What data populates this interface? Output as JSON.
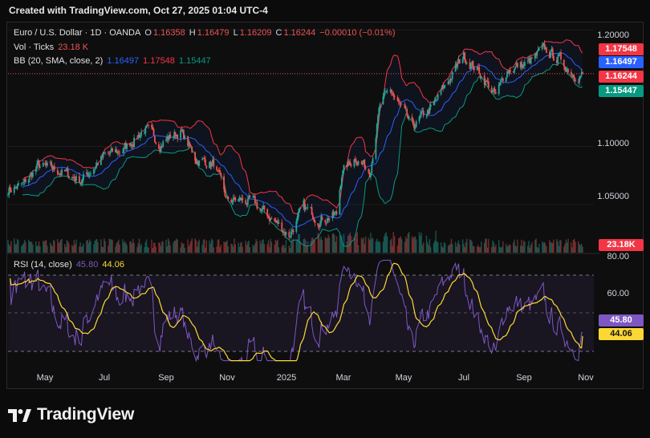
{
  "header": {
    "created_text": "Created with TradingView.com, Oct 27, 2025 01:04 UTC-4"
  },
  "brand": {
    "name": "TradingView",
    "icon": "tradingview-logo-icon"
  },
  "legend": {
    "symbol": "Euro / U.S. Dollar · 1D · OANDA",
    "o_label": "O",
    "o_value": "1.16358",
    "h_label": "H",
    "h_value": "1.16479",
    "l_label": "L",
    "l_value": "1.16209",
    "c_label": "C",
    "c_value": "1.16244",
    "change": "−0.00010 (−0.01%)",
    "vol_label": "Vol · Ticks",
    "vol_value": "23.18 K",
    "bb_label": "BB (20, SMA, close, 2)",
    "bb_basis": "1.16497",
    "bb_upper": "1.17548",
    "bb_lower": "1.15447",
    "rsi_label": "RSI (14, close)",
    "rsi_value": "45.80",
    "rsi_ma": "44.06"
  },
  "badges": {
    "upper": "1.17548",
    "basis": "1.16497",
    "price": "1.16244",
    "lower": "1.15447",
    "volume": "23.18K",
    "rsi": "45.80",
    "rsi_ma": "44.06"
  },
  "colors": {
    "up": "#26a69a",
    "down": "#ef5350",
    "basis": "#2962ff",
    "upper": "#f23645",
    "lower": "#089981",
    "rsi": "#7e57c2",
    "rsi_ma": "#fdd835"
  },
  "chart_data": [
    {
      "type": "candlestick",
      "title": "Euro / U.S. Dollar · 1D · OANDA",
      "ylim": [
        1.015,
        1.205
      ],
      "y_ticks": [
        1.05,
        1.1,
        1.2
      ],
      "y_tick_labels": [
        "1.05000",
        "1.10000",
        "1.20000"
      ],
      "x_tick_labels": [
        "May",
        "Jul",
        "Sep",
        "Nov",
        "2025",
        "Mar",
        "May",
        "Jul",
        "Sep",
        "Nov"
      ],
      "close_anchors": {
        "x": [
          "2024-04-16",
          "2024-05-01",
          "2024-05-15",
          "2024-06-05",
          "2024-06-26",
          "2024-07-17",
          "2024-08-05",
          "2024-08-26",
          "2024-09-10",
          "2024-09-30",
          "2024-10-15",
          "2024-11-01",
          "2024-11-14",
          "2024-11-26",
          "2024-12-10",
          "2024-12-31",
          "2025-01-13",
          "2025-01-27",
          "2025-02-12",
          "2025-02-28",
          "2025-03-05",
          "2025-03-18",
          "2025-04-01",
          "2025-04-11",
          "2025-04-21",
          "2025-05-12",
          "2025-06-02",
          "2025-06-13",
          "2025-07-01",
          "2025-07-16",
          "2025-08-01",
          "2025-08-12",
          "2025-09-01",
          "2025-09-17",
          "2025-10-01",
          "2025-10-15",
          "2025-10-24"
        ],
        "y": [
          1.063,
          1.067,
          1.083,
          1.079,
          1.071,
          1.091,
          1.097,
          1.115,
          1.103,
          1.113,
          1.089,
          1.085,
          1.053,
          1.054,
          1.051,
          1.035,
          1.024,
          1.047,
          1.038,
          1.041,
          1.078,
          1.091,
          1.079,
          1.135,
          1.148,
          1.116,
          1.135,
          1.152,
          1.178,
          1.164,
          1.143,
          1.166,
          1.171,
          1.183,
          1.175,
          1.163,
          1.162
        ]
      },
      "last": {
        "open": 1.16358,
        "high": 1.16479,
        "low": 1.16209,
        "close": 1.16244
      },
      "series": [
        {
          "name": "BB basis",
          "last": 1.16497
        },
        {
          "name": "BB upper",
          "last": 1.17548
        },
        {
          "name": "BB lower",
          "last": 1.15447
        }
      ],
      "volume_last": "23.18K"
    },
    {
      "type": "line",
      "title": "RSI (14, close)",
      "ylim": [
        30,
        85
      ],
      "y_ticks": [
        60,
        80
      ],
      "y_tick_labels": [
        "60.00",
        "80.00"
      ],
      "bands": [
        70,
        50,
        30
      ],
      "series": [
        {
          "name": "RSI",
          "last": 45.8
        },
        {
          "name": "RSI MA",
          "last": 44.06
        }
      ]
    }
  ]
}
